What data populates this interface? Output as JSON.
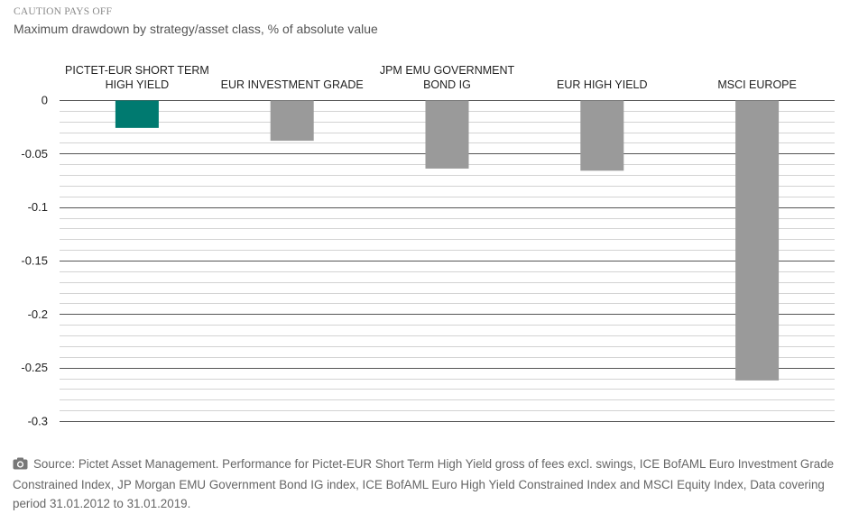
{
  "header": {
    "kicker": "CAUTION PAYS OFF",
    "subtitle": "Maximum drawdown by strategy/asset class, % of absolute value"
  },
  "chart_data": {
    "type": "bar",
    "categories": [
      "PICTET-EUR SHORT TERM HIGH YIELD",
      "EUR INVESTMENT GRADE",
      "JPM EMU GOVERNMENT BOND IG",
      "EUR HIGH YIELD",
      "MSCI EUROPE"
    ],
    "category_label_lines": [
      [
        "PICTET-EUR SHORT TERM",
        "HIGH YIELD"
      ],
      [
        "EUR INVESTMENT GRADE"
      ],
      [
        "JPM EMU GOVERNMENT",
        "BOND IG"
      ],
      [
        "EUR HIGH YIELD"
      ],
      [
        "MSCI EUROPE"
      ]
    ],
    "values": [
      -0.026,
      -0.038,
      -0.064,
      -0.066,
      -0.262
    ],
    "bar_colors": [
      "#007a70",
      "#9a9a9a",
      "#9a9a9a",
      "#9a9a9a",
      "#9a9a9a"
    ],
    "ylim": [
      -0.3,
      0
    ],
    "yticks": [
      "0",
      "-0.05",
      "-0.1",
      "-0.15",
      "-0.2",
      "-0.25",
      "-0.3"
    ],
    "ytick_values": [
      0,
      -0.05,
      -0.1,
      -0.15,
      -0.2,
      -0.25,
      -0.3
    ],
    "minor_grid_step": 0.01,
    "grid": true,
    "xlabel": "",
    "ylabel": ""
  },
  "footer": {
    "icon": "camera-icon",
    "source": "Source: Pictet Asset Management. Performance for Pictet-EUR Short Term High Yield gross of fees excl. swings, ICE BofAML Euro Investment Grade Constrained Index, JP Morgan EMU Government Bond IG index, ICE BofAML Euro High Yield Constrained Index and MSCI Equity Index, Data covering period 31.01.2012 to 31.01.2019."
  }
}
